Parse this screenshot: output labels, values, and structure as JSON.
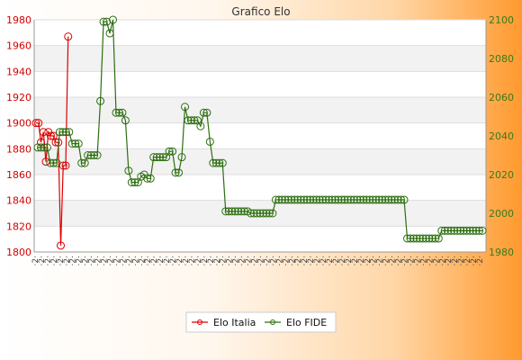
{
  "chart_data": {
    "type": "line",
    "title": "Grafico Elo",
    "legend": "bottom-center",
    "grid": true,
    "left_axis": {
      "ylim": [
        1800,
        1980
      ],
      "ticks": [
        1800,
        1820,
        1840,
        1860,
        1880,
        1900,
        1920,
        1940,
        1960,
        1980
      ],
      "color": "#dd0000"
    },
    "right_axis": {
      "ylim": [
        1980,
        2100
      ],
      "ticks": [
        1980,
        2000,
        2020,
        2040,
        2060,
        2080,
        2100
      ],
      "color": "#2d6e10"
    },
    "series": [
      {
        "name": "Elo Italia",
        "axis": "left",
        "color": "#dd0000",
        "values": [
          1900,
          1900,
          1885,
          1893,
          1870,
          1893,
          1890,
          1890,
          1885,
          1885,
          1805,
          1867,
          1867,
          1967
        ]
      },
      {
        "name": "Elo FIDE",
        "axis": "right",
        "color": "#2d6e10",
        "values": [
          2034,
          2034,
          2034,
          2034,
          2026,
          2026,
          2026,
          2042,
          2042,
          2042,
          2042,
          2036,
          2036,
          2036,
          2026,
          2026,
          2030,
          2030,
          2030,
          2030,
          2058,
          2099,
          2099,
          2093,
          2100,
          2052,
          2052,
          2052,
          2048,
          2022,
          2016,
          2016,
          2016,
          2019,
          2020,
          2018,
          2018,
          2029,
          2029,
          2029,
          2029,
          2029,
          2032,
          2032,
          2021,
          2021,
          2029,
          2055,
          2048,
          2048,
          2048,
          2048,
          2045,
          2052,
          2052,
          2037,
          2026,
          2026,
          2026,
          2026,
          2001,
          2001,
          2001,
          2001,
          2001,
          2001,
          2001,
          2001,
          2000,
          2000,
          2000,
          2000,
          2000,
          2000,
          2000,
          2000,
          2007,
          2007,
          2007,
          2007,
          2007,
          2007,
          2007,
          2007,
          2007,
          2007,
          2007,
          2007,
          2007,
          2007,
          2007,
          2007,
          2007,
          2007,
          2007,
          2007,
          2007,
          2007,
          2007,
          2007,
          2007,
          2007,
          2007,
          2007,
          2007,
          2007,
          2007,
          2007,
          2007,
          2007,
          2007,
          2007,
          2007,
          2007,
          2007,
          2007,
          2007,
          2007,
          1987,
          1987,
          1987,
          1987,
          1987,
          1987,
          1987,
          1987,
          1987,
          1987,
          1987,
          1991,
          1991,
          1991,
          1991,
          1991,
          1991,
          1991,
          1991,
          1991,
          1991,
          1991,
          1991,
          1991,
          1991
        ]
      }
    ]
  }
}
